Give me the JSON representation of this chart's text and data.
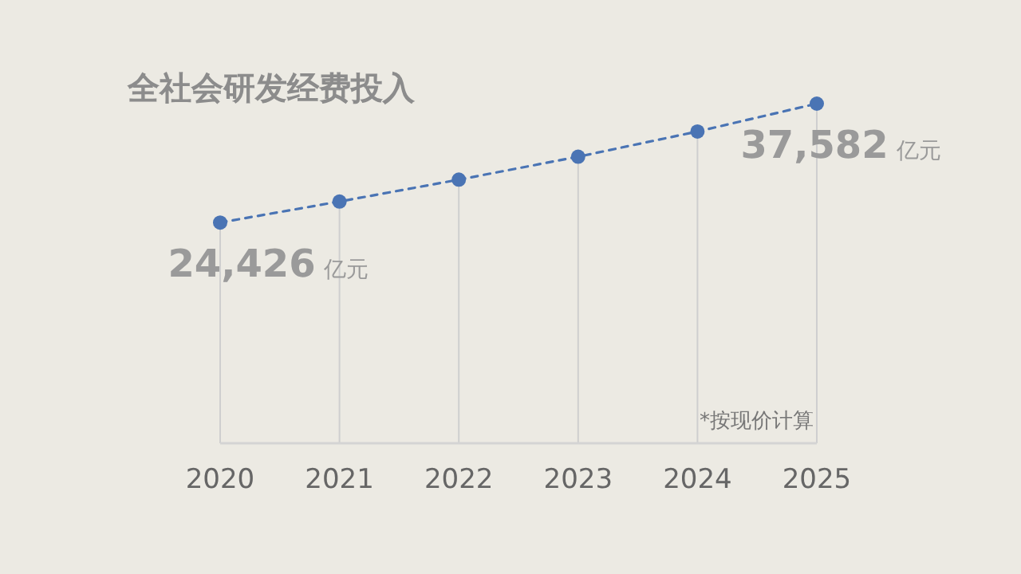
{
  "chart_data": {
    "type": "line",
    "title": "全社会研发经费投入",
    "categories": [
      "2020",
      "2021",
      "2022",
      "2023",
      "2024",
      "2025"
    ],
    "series": [
      {
        "color": "#4a74b4",
        "values": [
          24426,
          26750,
          29170,
          31710,
          34500,
          37582
        ],
        "value_labels": [
          "24,426 亿元",
          null,
          null,
          null,
          null,
          "37,582 亿元"
        ]
      }
    ],
    "tick_labels": "x",
    "grid": "x",
    "marker": "circle",
    "line_style": "dashed",
    "annotations": [
      "*按现价计算"
    ]
  }
}
